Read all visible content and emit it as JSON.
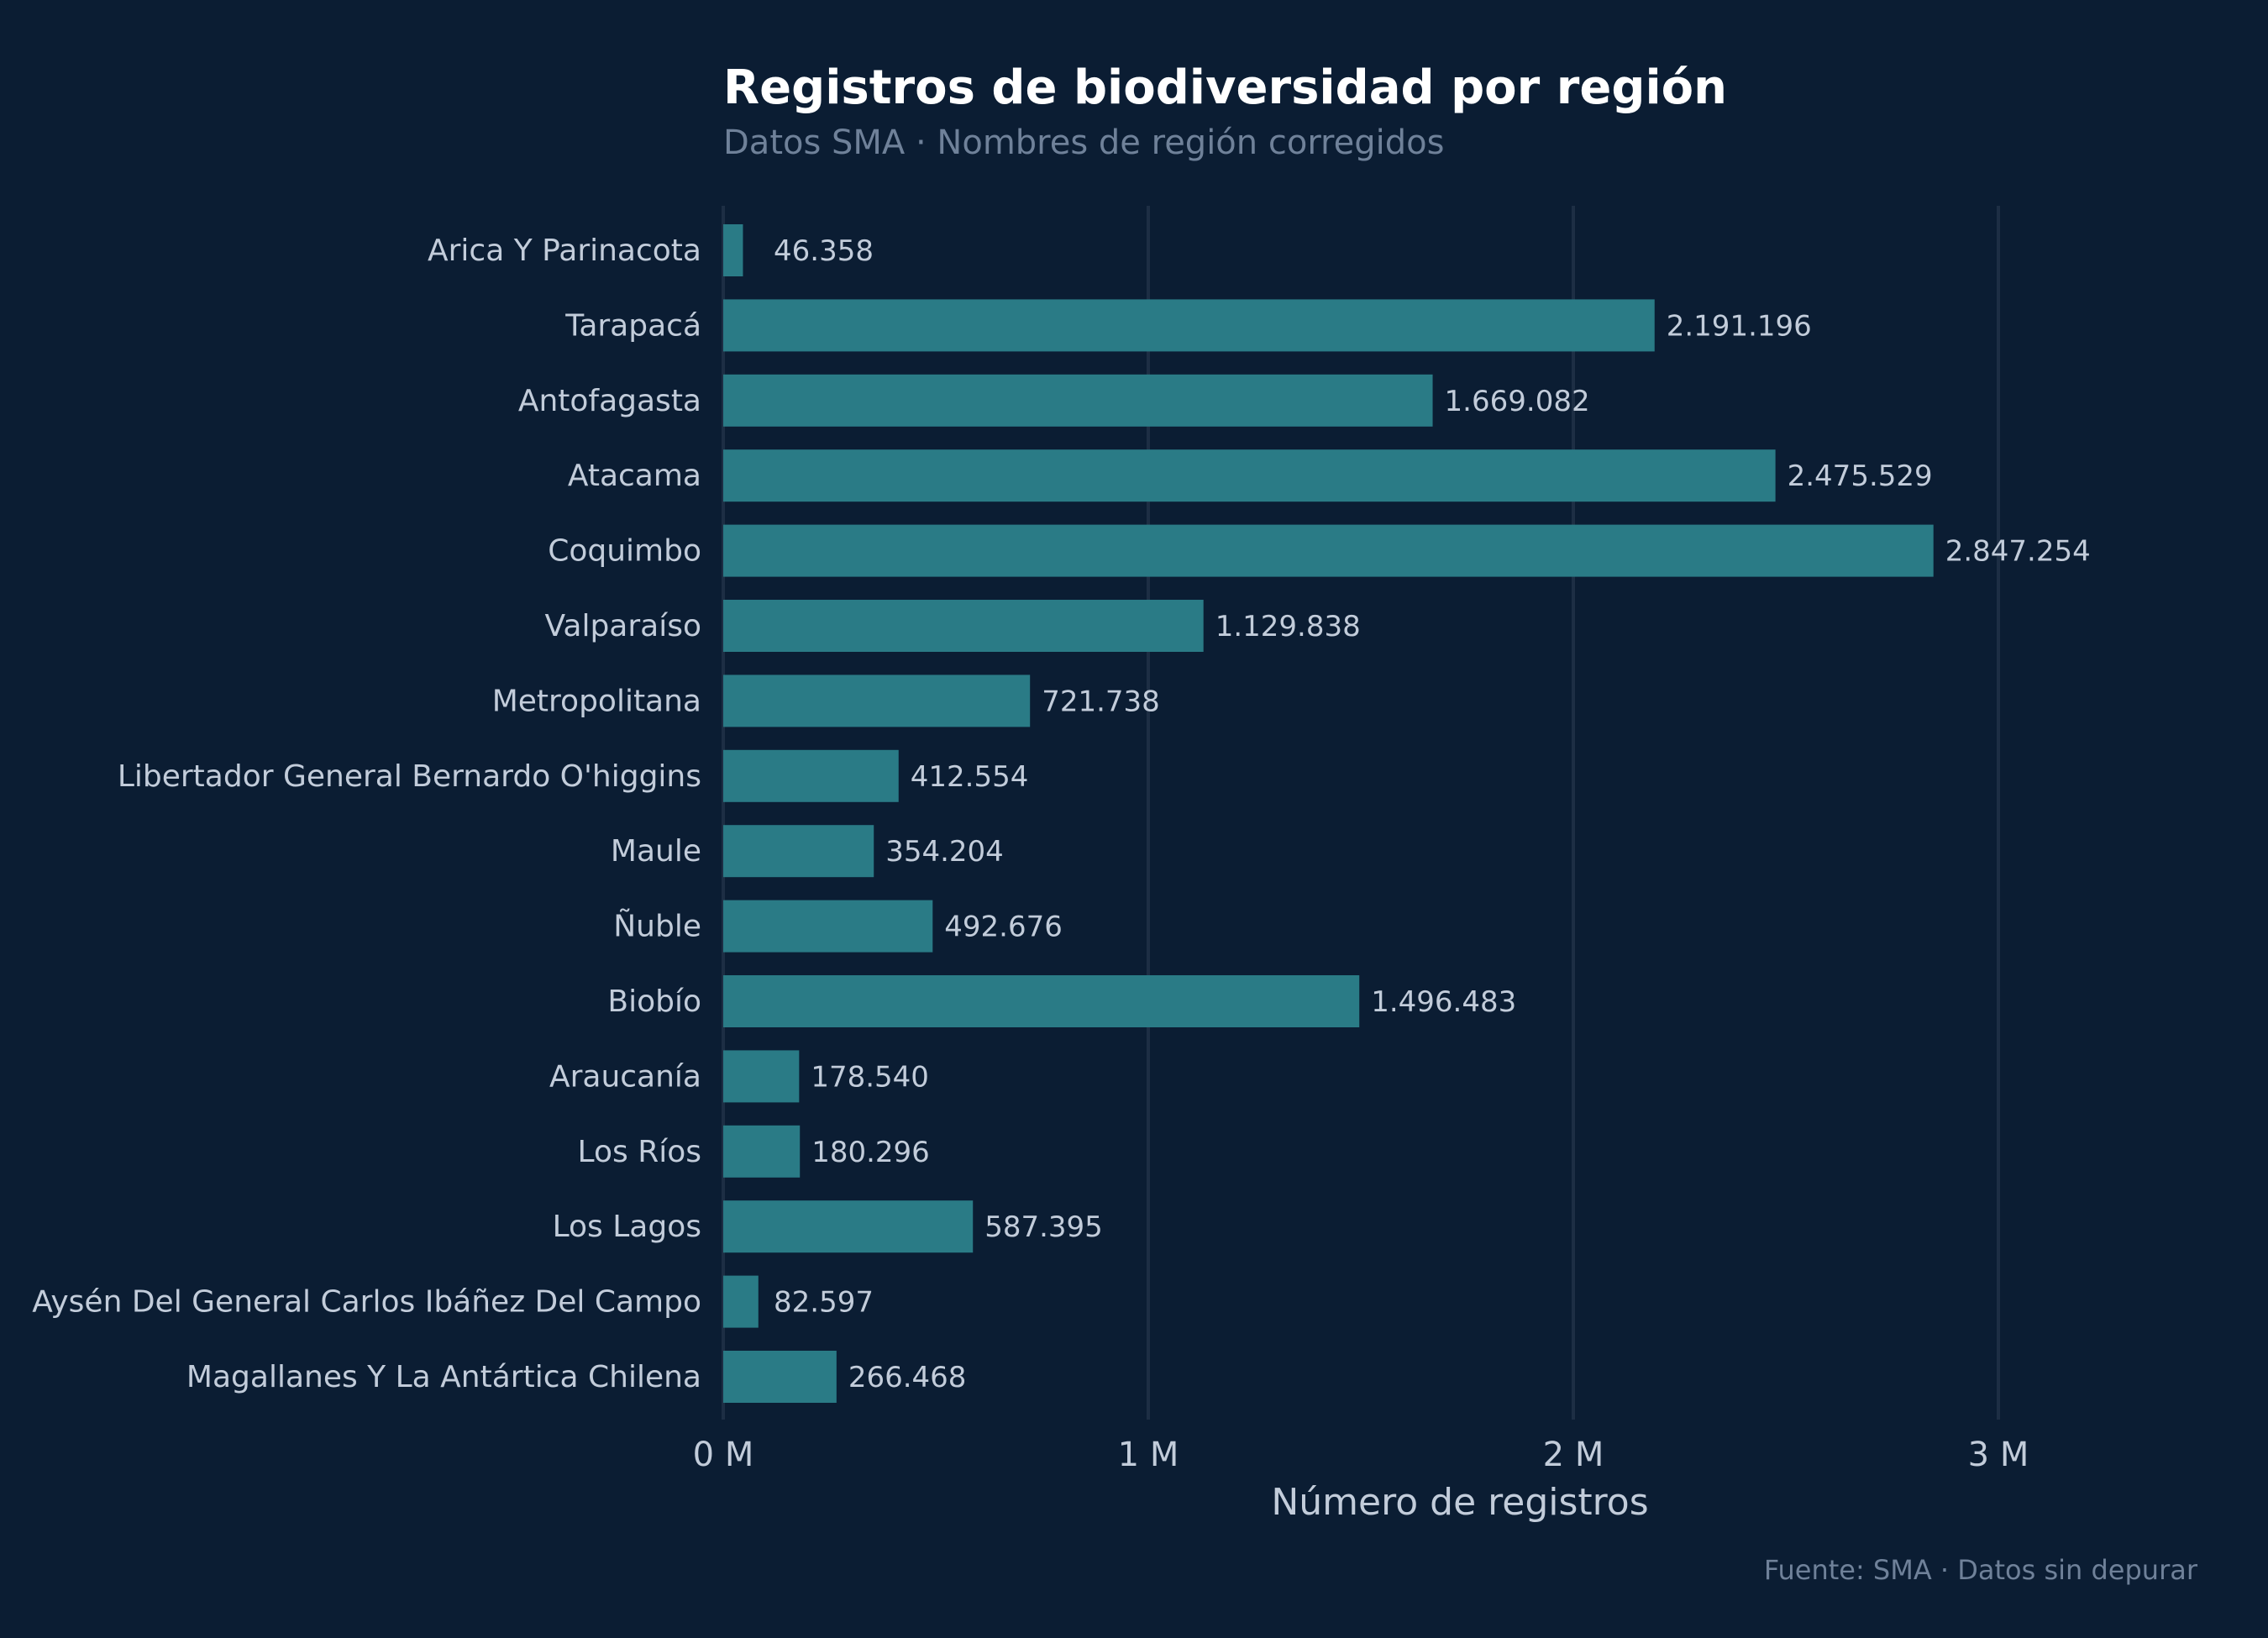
{
  "chart_data": {
    "type": "bar",
    "orientation": "horizontal",
    "title": "Registros de biodiversidad por región",
    "subtitle": "Datos SMA · Nombres de región corregidos",
    "xlabel": "Número de registros",
    "ylabel": "",
    "caption": "Fuente: SMA · Datos sin depurar",
    "xlim": [
      0,
      3300000
    ],
    "xticks": [
      0,
      1000000,
      2000000,
      3000000
    ],
    "xtick_labels": [
      "0 M",
      "1 M",
      "2 M",
      "3 M"
    ],
    "grid": "vertical",
    "colors": {
      "background": "#0b1d33",
      "bar": "#2a7b86",
      "grid": "#1d2e44"
    },
    "categories": [
      "Arica Y Parinacota",
      "Tarapacá",
      "Antofagasta",
      "Atacama",
      "Coquimbo",
      "Valparaíso",
      "Metropolitana",
      "Libertador General Bernardo O'higgins",
      "Maule",
      "Ñuble",
      "Biobío",
      "Araucanía",
      "Los Ríos",
      "Los Lagos",
      "Aysén Del General Carlos Ibáñez Del Campo",
      "Magallanes Y La Antártica Chilena"
    ],
    "values": [
      46358,
      2191196,
      1669082,
      2475529,
      2847254,
      1129838,
      721738,
      412554,
      354204,
      492676,
      1496483,
      178540,
      180296,
      587395,
      82597,
      266468
    ],
    "value_labels": [
      "46.358",
      "2.191.196",
      "1.669.082",
      "2.475.529",
      "2.847.254",
      "1.129.838",
      "721.738",
      "412.554",
      "354.204",
      "492.676",
      "1.496.483",
      "178.540",
      "180.296",
      "587.395",
      "82.597",
      "266.468"
    ]
  }
}
